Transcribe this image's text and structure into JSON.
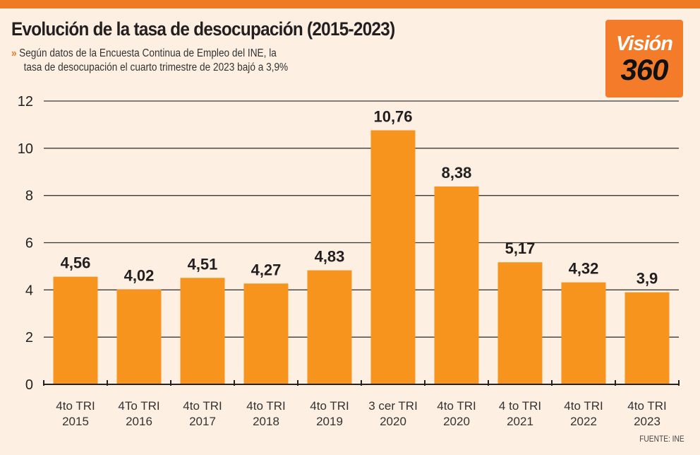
{
  "header": {
    "title": "Evolución de la tasa de desocupación (2015-2023)",
    "subtitle_line1": "Según datos de la Encuesta Continua de Empleo del INE, la",
    "subtitle_line2": "tasa de desocupación el cuarto trimestre de 2023 bajó a 3,9%",
    "bullet": "»"
  },
  "logo": {
    "line1": "Visión",
    "line2": "360"
  },
  "source": "FUENTE: INE",
  "colors": {
    "bar": "#f7941d",
    "accent": "#f07a22",
    "background": "#fdefe2"
  },
  "chart_data": {
    "type": "bar",
    "categories": [
      [
        "4to TRI",
        "2015"
      ],
      [
        "4To TRI",
        "2016"
      ],
      [
        "4to TRI",
        "2017"
      ],
      [
        "4to TRI",
        "2018"
      ],
      [
        "4to TRI",
        "2019"
      ],
      [
        "3 cer TRI",
        "2020"
      ],
      [
        "4to TRI",
        "2020"
      ],
      [
        "4 to TRI",
        "2021"
      ],
      [
        "4to TRI",
        "2022"
      ],
      [
        "4to TRI",
        "2023"
      ]
    ],
    "values": [
      4.56,
      4.02,
      4.51,
      4.27,
      4.83,
      10.76,
      8.38,
      5.17,
      4.32,
      3.9
    ],
    "labels": [
      "4,56",
      "4,02",
      "4,51",
      "4,27",
      "4,83",
      "10,76",
      "8,38",
      "5,17",
      "4,32",
      "3,9"
    ],
    "ylim": [
      0,
      12
    ],
    "yticks": [
      0,
      2,
      4,
      6,
      8,
      10,
      12
    ],
    "grid": true
  }
}
